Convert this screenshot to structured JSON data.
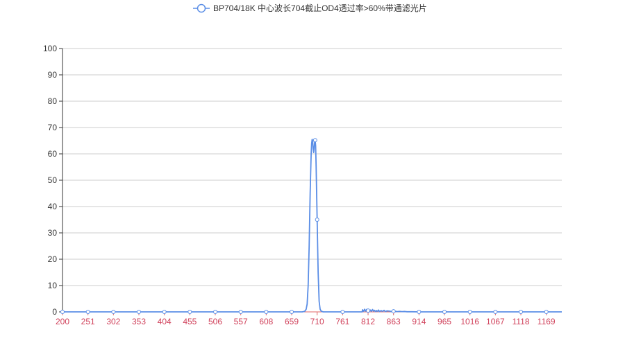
{
  "chart_data": {
    "type": "line",
    "title": "",
    "xlabel": "",
    "ylabel": "",
    "legend": {
      "position": "top-center",
      "entries": [
        "BP704/18K 中心波长704截止OD4透过率>60%带通滤光片"
      ]
    },
    "x_ticks": [
      "200",
      "251",
      "302",
      "353",
      "404",
      "455",
      "506",
      "557",
      "608",
      "659",
      "710",
      "761",
      "812",
      "863",
      "914",
      "965",
      "1016",
      "1067",
      "1118",
      "1169"
    ],
    "y_ticks": [
      "0",
      "10",
      "20",
      "30",
      "40",
      "50",
      "60",
      "70",
      "80",
      "90",
      "100"
    ],
    "xlim": [
      200,
      1200
    ],
    "ylim": [
      0,
      100
    ],
    "grid": true,
    "series": [
      {
        "name": "BP704/18K 中心波长704截止OD4透过率>60%带通滤光片",
        "color": "#5b8ee6",
        "x": [
          200,
          251,
          302,
          353,
          404,
          455,
          506,
          557,
          608,
          659,
          680,
          685,
          688,
          690,
          692,
          694,
          696,
          698,
          699,
          700,
          701,
          702,
          703,
          704,
          705,
          706,
          707,
          708,
          710,
          712,
          714,
          716,
          718,
          722,
          740,
          761,
          800,
          801,
          803,
          805,
          807,
          809,
          811,
          813,
          815,
          817,
          819,
          821,
          823,
          825,
          827,
          829,
          831,
          833,
          835,
          838,
          841,
          844,
          847,
          850,
          855,
          860,
          865,
          870,
          875,
          880,
          885,
          890,
          900,
          914,
          965,
          1016,
          1067,
          1118,
          1169,
          1200
        ],
        "y": [
          0,
          0,
          0,
          0,
          0,
          0,
          0,
          0,
          0,
          0,
          0,
          0.2,
          1,
          3,
          10,
          25,
          45,
          60,
          64,
          65.5,
          65,
          62,
          60.5,
          62,
          64.5,
          65.2,
          63,
          55,
          35,
          15,
          4,
          1,
          0.3,
          0,
          0,
          0,
          0,
          0.8,
          0.2,
          1,
          0.3,
          0.9,
          0.2,
          0.8,
          0.1,
          0.7,
          0.2,
          0.9,
          0.3,
          0.6,
          0.1,
          0.5,
          0.2,
          0.7,
          0.1,
          0.5,
          0.2,
          0.6,
          0.1,
          0.4,
          0.3,
          0.1,
          0.3,
          0.1,
          0.2,
          0.1,
          0.15,
          0.05,
          0.05,
          0,
          0,
          0,
          0,
          0,
          0,
          0
        ]
      }
    ]
  }
}
